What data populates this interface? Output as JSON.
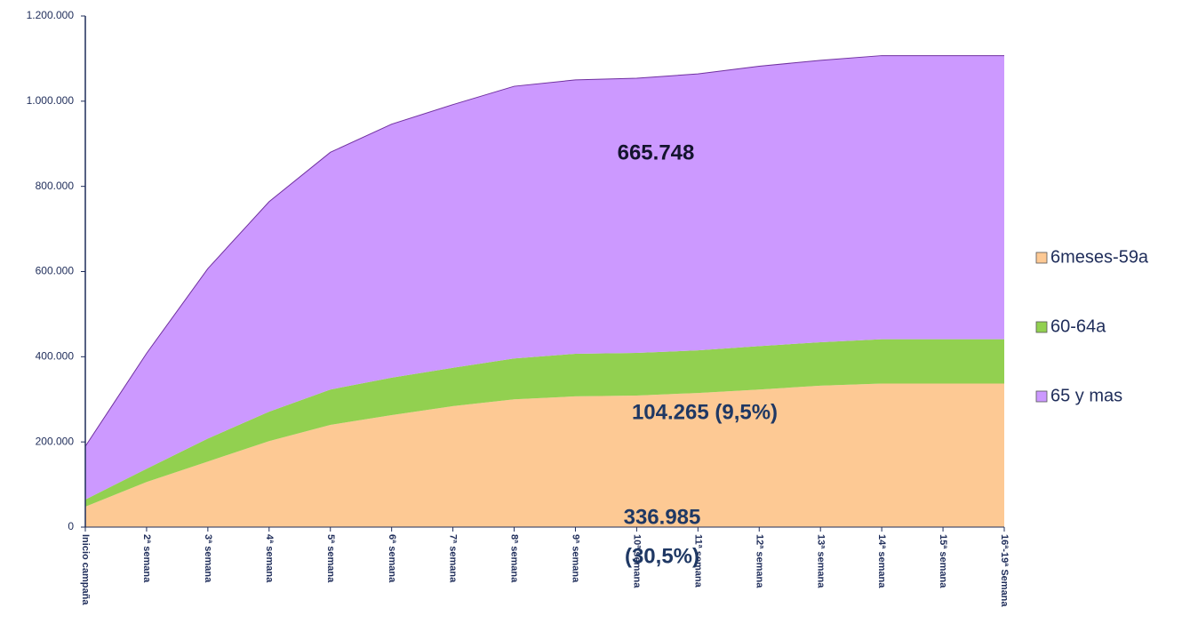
{
  "chart_data": {
    "type": "stacked_area",
    "categories": [
      "Inicio campaña",
      "2ª semana",
      "3ª semana",
      "4ª semana",
      "5ª semana",
      "6ª semana",
      "7ª semana",
      "8ª semana",
      "9ª semana",
      "10ª semana",
      "11ª semana",
      "12ª semana",
      "13ª semana",
      "14ª semana",
      "15ª semana",
      "16ª-19ª Semana"
    ],
    "series": [
      {
        "name": "6meses-59a",
        "color": "#fdc994",
        "values": [
          48000,
          106000,
          154000,
          202000,
          240000,
          263000,
          284000,
          300000,
          307000,
          309000,
          315000,
          323000,
          332000,
          336985,
          336985,
          336985
        ]
      },
      {
        "name": "60-64a",
        "color": "#92d050",
        "values": [
          16700,
          31000,
          54000,
          69000,
          83000,
          88000,
          90000,
          96000,
          100000,
          100000,
          100000,
          102000,
          102000,
          104265,
          104265,
          104265
        ]
      },
      {
        "name": "65 y mas",
        "color": "#cc99ff",
        "values": [
          125000,
          271000,
          399000,
          493000,
          557000,
          595000,
          618000,
          639000,
          643000,
          645000,
          649000,
          657000,
          662000,
          665748,
          665748,
          665748
        ]
      }
    ],
    "ylim": [
      0,
      1200000
    ],
    "yticks": [
      0,
      {
        "value": 200000,
        "label": "200.000"
      },
      {
        "value": 400000,
        "label": "400.000"
      },
      {
        "value": 600000,
        "label": "600.000"
      },
      {
        "value": 800000,
        "label": "800.000"
      },
      {
        "value": 1000000,
        "label": "1.000.000"
      },
      {
        "value": 1200000,
        "label": "1.200.000"
      }
    ],
    "legend": "right",
    "annotations": [
      {
        "lines": [
          "665.748"
        ]
      },
      {
        "lines": [
          "104.265 (9,5%)"
        ]
      },
      {
        "lines": [
          "336.985",
          "(30,5%)"
        ]
      }
    ]
  }
}
